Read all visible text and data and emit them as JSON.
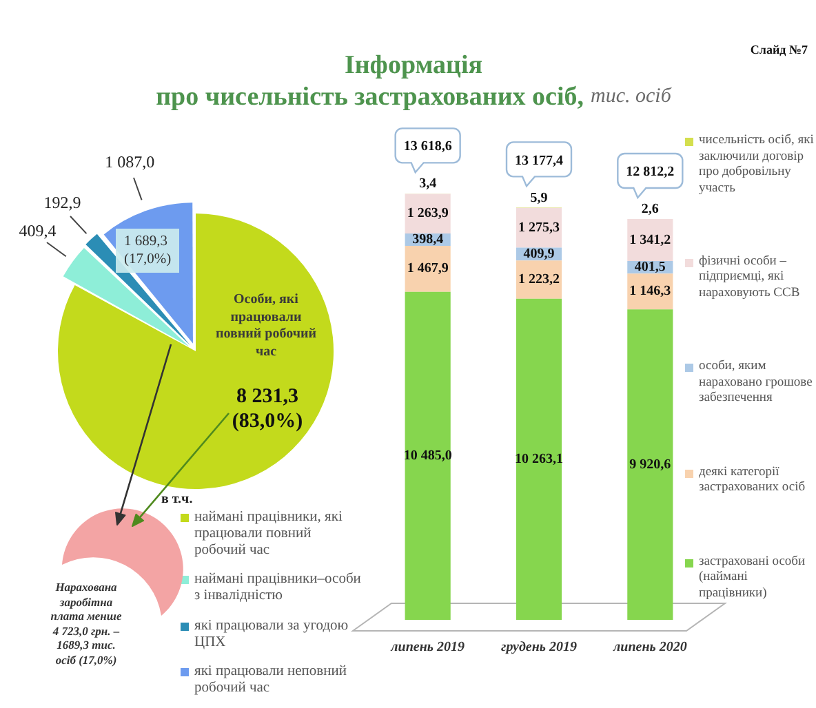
{
  "chart_data": [
    {
      "type": "pie",
      "title": "Інформація\nпро чисельність застрахованих осіб,",
      "categories": [
        "наймані працівники, які працювали повний робочий час",
        "наймані працівники–особи з інвалідністю",
        "які працювали за угодою ЦПХ",
        "які працювали неповний робочий час"
      ],
      "values": [
        8231.3,
        409.4,
        192.9,
        1087.0
      ],
      "colors": [
        "#c3da1c",
        "#8eeed8",
        "#2b8db5",
        "#6d9bef"
      ],
      "value_labels": [
        "8 231,3\n(83,0%)",
        "409,4",
        "192,9",
        "1 087,0"
      ],
      "legend": "bottom right",
      "legend_title": "в т.ч.",
      "annotations": [
        "Слайд №7",
        "Особи, які працювали повний робочий час",
        "1 689,3\n(17,0%)",
        "Нарахована заробітна плата менше 4 723,0 грн. – 1689,3 тис. осіб (17,0%)"
      ]
    },
    {
      "type": "bar",
      "subtitle": "тис. осіб",
      "stacked": true,
      "tick_labels": "x",
      "legend": "right",
      "categories": [
        "липень 2019",
        "грудень 2019",
        "липень 2020"
      ],
      "series": [
        {
          "name": "застраховані особи (наймані працівники)",
          "color": "#86d64e",
          "values": [
            10485.0,
            10263.1,
            9920.6
          ],
          "value_labels": [
            "10 485,0",
            "10 263,1",
            "9 920,6"
          ]
        },
        {
          "name": "деякі категорії застрахованих осіб",
          "color": "#f8d2ae",
          "values": [
            1467.9,
            1223.2,
            1146.3
          ],
          "value_labels": [
            "1 467,9",
            "1 223,2",
            "1 146,3"
          ]
        },
        {
          "name": "особи, яким нараховано грошове забезпечення",
          "color": "#acc9e6",
          "values": [
            398.4,
            409.9,
            401.5
          ],
          "value_labels": [
            "398,4",
            "409,9",
            "401,5"
          ]
        },
        {
          "name": "фізичні особи – підприємці, які нараховують ССВ",
          "color": "#f2dcdc",
          "values": [
            1263.9,
            1275.3,
            1341.2
          ],
          "value_labels": [
            "1 263,9",
            "1 275,3",
            "1 341,2"
          ]
        },
        {
          "name": "чисельність осіб, які заключили договір про добровільну участь",
          "color": "#d4df4e",
          "values": [
            3.4,
            5.9,
            2.6
          ],
          "value_labels": [
            "3,4",
            "5,9",
            "2,6"
          ]
        }
      ],
      "totals": [
        "13 618,6",
        "13 177,4",
        "12 812,2"
      ]
    }
  ]
}
